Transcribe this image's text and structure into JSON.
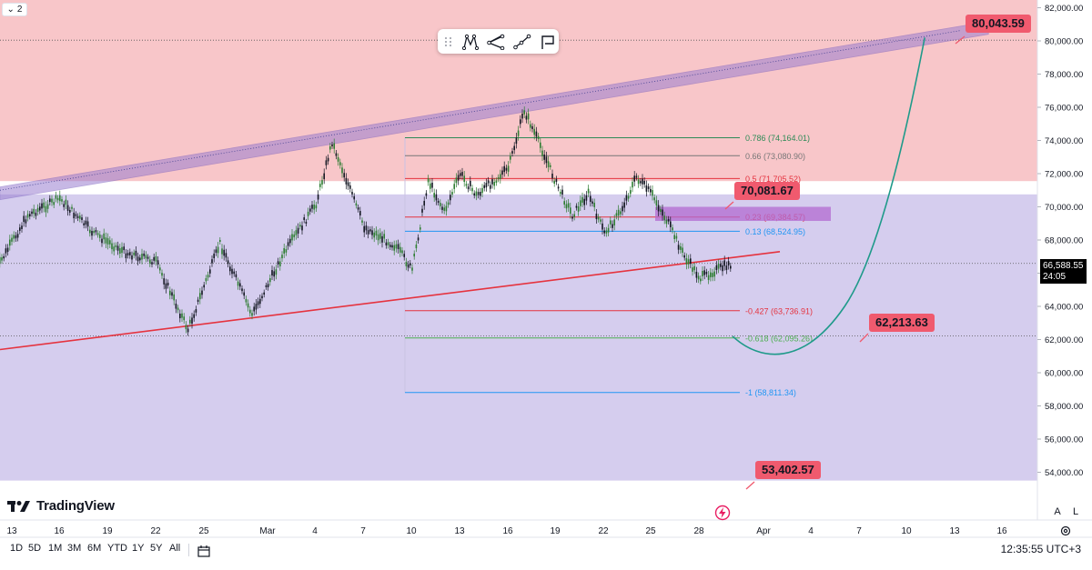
{
  "series_toggle": "2",
  "logo_text": "TradingView",
  "clock": "12:35:55 UTC+3",
  "periods": [
    "1D",
    "5D",
    "1M",
    "3M",
    "6M",
    "YTD",
    "1Y",
    "5Y",
    "All"
  ],
  "axis_buttons": [
    "A",
    "L"
  ],
  "current_price": {
    "price": "66,588.55",
    "countdown": "24:05"
  },
  "toolbar_icons": [
    "drag-handle-icon",
    "pattern-tool-icon",
    "path-tool-icon",
    "trend-line-tool-icon",
    "flag-tool-icon"
  ],
  "colors": {
    "sell_zone": "#f8c6c9",
    "range_zone": "#d5cdee",
    "channel": "#9a7fd0",
    "support_line": "#e5333f",
    "projection": "#1f9a8a",
    "callout": "#f05a6e",
    "candle_up": "#2e7d32",
    "candle_down": "#131722"
  },
  "chart_data": {
    "type": "line",
    "series": [
      {
        "x": [
          "Feb 12",
          "Feb 14",
          "Feb 16",
          "Feb 18",
          "Feb 20",
          "Feb 22",
          "Feb 24",
          "Feb 26",
          "Feb 28",
          "Mar 1",
          "Mar 3",
          "Mar 4",
          "Mar 6",
          "Mar 8",
          "Mar 9",
          "Mar 10",
          "Mar 11",
          "Mar 12",
          "Mar 13",
          "Mar 14",
          "Mar 15",
          "Mar 16",
          "Mar 17",
          "Mar 18",
          "Mar 19",
          "Mar 20",
          "Mar 21",
          "Mar 22",
          "Mar 23",
          "Mar 24",
          "Mar 25",
          "Mar 26",
          "Mar 27",
          "Mar 28",
          "Mar 29"
        ],
        "values": [
          66200,
          69500,
          70500,
          68500,
          67300,
          66700,
          62600,
          67800,
          63500,
          67200,
          70200,
          73900,
          68800,
          67600,
          66200,
          71600,
          69700,
          72000,
          70700,
          71500,
          72300,
          75800,
          73700,
          71400,
          69500,
          70800,
          68400,
          69700,
          71800,
          70700,
          69000,
          67000,
          65700,
          66200,
          66588
        ]
      }
    ],
    "yaxis": {
      "ticks": [
        "82,000.00",
        "80,000.00",
        "78,000.00",
        "76,000.00",
        "74,000.00",
        "72,000.00",
        "70,000.00",
        "68,000.00",
        "66,000.00",
        "64,000.00",
        "62,000.00",
        "60,000.00",
        "58,000.00",
        "56,000.00",
        "54,000.00"
      ],
      "range": [
        53500,
        82700
      ]
    },
    "xaxis": {
      "ticks": [
        "13",
        "16",
        "19",
        "22",
        "25",
        "Mar",
        "4",
        "7",
        "10",
        "13",
        "16",
        "19",
        "22",
        "25",
        "28",
        "Apr",
        "4",
        "7",
        "10",
        "13",
        "16"
      ]
    },
    "levels": [
      {
        "label": "80,043.59",
        "value": 80043.59
      },
      {
        "label": "70,081.67",
        "value": 70081.67
      },
      {
        "label": "62,213.63",
        "value": 62213.63
      },
      {
        "label": "53,402.57",
        "value": 53402.57
      }
    ],
    "fib_levels": [
      {
        "label": "0.786 (74,164.01)",
        "value": 74164.01
      },
      {
        "label": "0.66 (73,080.90)",
        "value": 73080.9
      },
      {
        "label": "0.5 (71,705.52)",
        "value": 71705.52
      },
      {
        "label": "0.23 (69,384.57)",
        "value": 69384.57
      },
      {
        "label": "0.13 (68,524.95)",
        "value": 68524.95
      },
      {
        "label": "-0.427 (63,736.91)",
        "value": 63736.91
      },
      {
        "label": "-0.618 (62,095.26)",
        "value": 62095.26
      },
      {
        "label": "-1 (58,811.34)",
        "value": 58811.34
      }
    ],
    "zones": [
      {
        "name": "upper",
        "from": 71550,
        "to": 82700
      },
      {
        "name": "range",
        "from": 53500,
        "to": 70750
      }
    ],
    "channel": {
      "start": {
        "x": "Feb 12",
        "y": 71200
      },
      "end": {
        "x": "Apr 10",
        "y": 80400
      }
    },
    "support_line": {
      "start": {
        "x": "Feb 12",
        "y": 62000
      },
      "end": {
        "x": "Mar 30",
        "y": 67300
      }
    },
    "projection": [
      {
        "x": "Mar 29",
        "y": 62200
      },
      {
        "x": "Apr 1",
        "y": 61000
      },
      {
        "x": "Apr 5",
        "y": 64000
      },
      {
        "x": "Apr 10",
        "y": 80200
      }
    ],
    "grid": false,
    "legend": "none"
  }
}
